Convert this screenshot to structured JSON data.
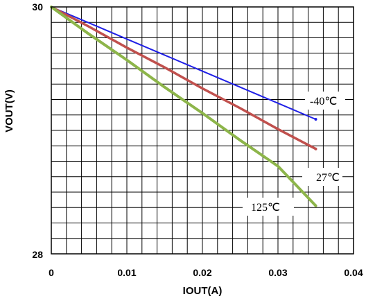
{
  "chart_data": {
    "type": "line",
    "title": "",
    "xlabel": "IOUT(A)",
    "ylabel": "VOUT(V)",
    "xlim": [
      0,
      0.04
    ],
    "ylim": [
      28,
      30
    ],
    "xticks": [
      "0",
      "0.01",
      "0.02",
      "0.03",
      "0.04"
    ],
    "yticks": [
      "28",
      "30"
    ],
    "grid": true,
    "series": [
      {
        "name": "-40℃",
        "color": "#1f1fe6",
        "x": [
          0,
          0.005,
          0.01,
          0.015,
          0.02,
          0.025,
          0.03,
          0.035
        ],
        "y": [
          30.0,
          29.87,
          29.74,
          29.61,
          29.48,
          29.35,
          29.22,
          29.09
        ]
      },
      {
        "name": "27℃",
        "color": "#c0504d",
        "x": [
          0,
          0.005,
          0.01,
          0.015,
          0.02,
          0.025,
          0.03,
          0.035
        ],
        "y": [
          30.0,
          29.84,
          29.67,
          29.51,
          29.34,
          29.18,
          29.01,
          28.85
        ]
      },
      {
        "name": "125℃",
        "color": "#8db54a",
        "x": [
          0,
          0.005,
          0.01,
          0.015,
          0.02,
          0.025,
          0.03,
          0.035
        ],
        "y": [
          30.0,
          29.78,
          29.57,
          29.35,
          29.14,
          28.92,
          28.71,
          28.39
        ]
      }
    ],
    "annotations": [
      "-40℃",
      "27℃",
      "125℃"
    ]
  }
}
